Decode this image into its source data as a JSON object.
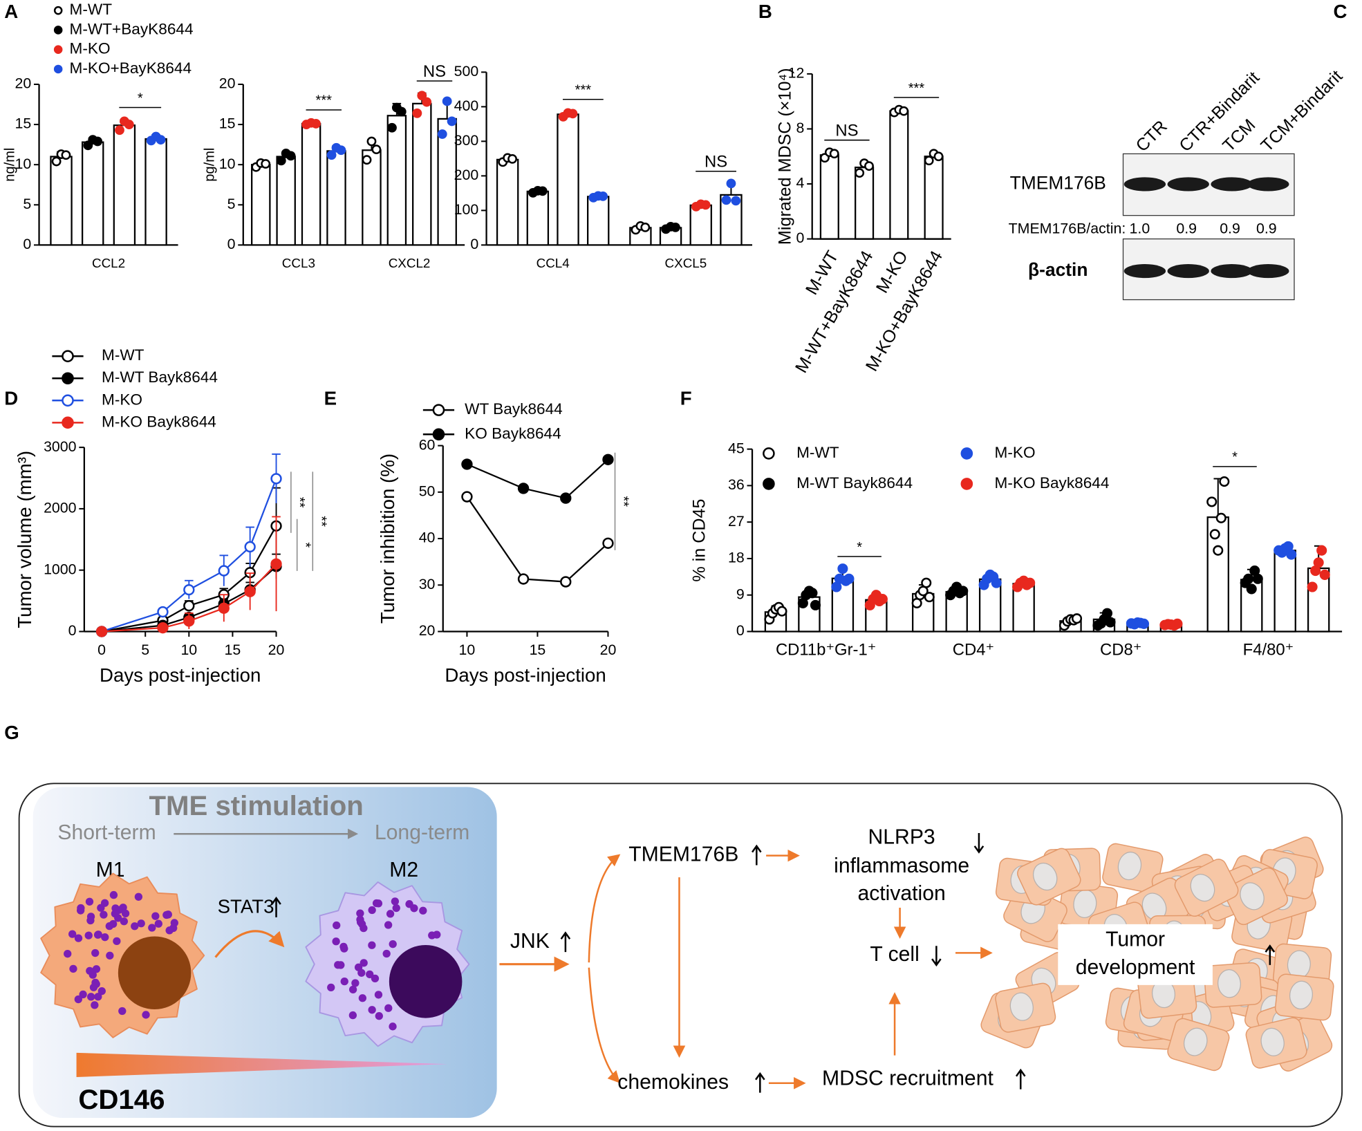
{
  "chart_data": [
    {
      "type": "bar",
      "panel_label": "A",
      "ylabel": "ng/ml",
      "ylim": [
        0,
        20
      ],
      "yticks": [
        0,
        5,
        10,
        15,
        20
      ],
      "categories": [
        "CCL2"
      ],
      "series": [
        {
          "name": "M-WT",
          "color": "#000000",
          "marker": "open",
          "values": [
            11.0
          ],
          "errors": [
            0.6
          ],
          "points": [
            [
              10.4,
              11.3,
              11.2
            ]
          ]
        },
        {
          "name": "M-WT+BayK8644",
          "color": "#000000",
          "marker": "filled",
          "values": [
            12.8
          ],
          "errors": [
            0.5
          ],
          "points": [
            [
              12.4,
              13.1,
              12.9
            ]
          ]
        },
        {
          "name": "M-KO",
          "color": "#e8281e",
          "marker": "filled",
          "values": [
            14.9
          ],
          "errors": [
            0.7
          ],
          "points": [
            [
              14.3,
              15.4,
              15.0
            ]
          ]
        },
        {
          "name": "M-KO+BayK8644",
          "color": "#1f4fe0",
          "marker": "filled",
          "values": [
            13.2
          ],
          "errors": [
            0.5
          ],
          "points": [
            [
              13.0,
              13.5,
              13.1
            ]
          ]
        }
      ],
      "significance": [
        {
          "label": "*",
          "from": 2,
          "to": 3
        }
      ]
    },
    {
      "type": "bar",
      "ylabel": "pg/ml",
      "ylim": [
        0,
        20
      ],
      "yticks": [
        0,
        5,
        10,
        15,
        20
      ],
      "categories": [
        "CCL3",
        "CXCL2"
      ],
      "series": [
        {
          "color": "#000000",
          "marker": "open",
          "values": [
            10.0,
            11.8
          ],
          "errors": [
            0.4,
            1.3
          ],
          "points": [
            [
              9.7,
              10.2,
              10.1
            ],
            [
              10.6,
              12.9,
              11.9
            ]
          ]
        },
        {
          "color": "#000000",
          "marker": "filled",
          "values": [
            11.0,
            16.1
          ],
          "errors": [
            0.6,
            1.5
          ],
          "points": [
            [
              10.5,
              11.4,
              11.1
            ],
            [
              14.6,
              17.1,
              16.6
            ]
          ]
        },
        {
          "color": "#e8281e",
          "marker": "filled",
          "values": [
            15.1,
            17.6
          ],
          "errors": [
            0.2,
            1.3
          ],
          "points": [
            [
              15.0,
              15.2,
              15.1
            ],
            [
              16.4,
              18.6,
              17.8
            ]
          ]
        },
        {
          "color": "#1f4fe0",
          "marker": "filled",
          "values": [
            11.7,
            15.7
          ],
          "errors": [
            0.6,
            2.0
          ],
          "points": [
            [
              11.2,
              12.1,
              11.8
            ],
            [
              13.8,
              17.9,
              15.4
            ]
          ]
        }
      ],
      "significance": [
        {
          "label": "***",
          "from": 2,
          "to": 3
        },
        {
          "label": "NS",
          "from": 6,
          "to": 7
        }
      ]
    },
    {
      "type": "bar",
      "ylim": [
        0,
        500
      ],
      "yticks": [
        0,
        100,
        200,
        300,
        400,
        500
      ],
      "categories": [
        "CCL4",
        "CXCL5"
      ],
      "series": [
        {
          "color": "#000000",
          "marker": "open",
          "values": [
            247,
            50
          ],
          "errors": [
            8,
            8
          ],
          "points": [
            [
              240,
              252,
              249
            ],
            [
              44,
              55,
              51
            ]
          ]
        },
        {
          "color": "#000000",
          "marker": "filled",
          "values": [
            155,
            50
          ],
          "errors": [
            5,
            5
          ],
          "points": [
            [
              151,
              157,
              156
            ],
            [
              46,
              53,
              51
            ]
          ]
        },
        {
          "color": "#e8281e",
          "marker": "filled",
          "values": [
            378,
            115
          ],
          "errors": [
            8,
            5
          ],
          "points": [
            [
              371,
              382,
              380
            ],
            [
              111,
              118,
              116
            ]
          ]
        },
        {
          "color": "#1f4fe0",
          "marker": "filled",
          "values": [
            140,
            145
          ],
          "errors": [
            5,
            30
          ],
          "points": [
            [
              137,
              142,
              141
            ],
            [
              130,
              178,
              128
            ]
          ]
        }
      ],
      "significance": [
        {
          "label": "***",
          "from": 2,
          "to": 3
        },
        {
          "label": "NS",
          "from": 6,
          "to": 7
        }
      ]
    },
    {
      "type": "bar",
      "panel_label": "B",
      "ylabel": "Migrated MDSC (×10⁴)",
      "ylim": [
        0,
        12
      ],
      "yticks": [
        0,
        4,
        8,
        12
      ],
      "categories": [
        "M-WT",
        "M-WT+BayK8644",
        "M-KO",
        "M-KO+BayK8644"
      ],
      "series": [
        {
          "color": "#000000",
          "marker": "open",
          "values": [
            6.1,
            5.2,
            9.3,
            6.0
          ],
          "errors": [
            0.2,
            0.4,
            0.1,
            0.3
          ],
          "points": [
            [
              5.9,
              6.3,
              6.2
            ],
            [
              4.8,
              5.5,
              5.3
            ],
            [
              9.2,
              9.4,
              9.3
            ],
            [
              5.7,
              6.2,
              6.0
            ]
          ]
        }
      ],
      "significance": [
        {
          "label": "NS",
          "from": 0,
          "to": 1
        },
        {
          "label": "***",
          "from": 2,
          "to": 3
        }
      ]
    },
    {
      "type": "line",
      "panel_label": "D",
      "xlabel": "Days post-injection",
      "ylabel": "Tumor volume (mm³)",
      "x": [
        0,
        7,
        10,
        14,
        17,
        20
      ],
      "xlim": [
        -2,
        20
      ],
      "xticks": [
        0,
        5,
        10,
        15,
        20
      ],
      "ylim": [
        0,
        3000
      ],
      "yticks": [
        0,
        1000,
        2000,
        3000
      ],
      "series": [
        {
          "name": "M-WT",
          "color": "#000000",
          "marker": "open",
          "values": [
            0,
            180,
            420,
            600,
            960,
            1720
          ],
          "errors": [
            0,
            40,
            80,
            100,
            150,
            620
          ]
        },
        {
          "name": "M-WT Bayk8644",
          "color": "#000000",
          "marker": "filled",
          "values": [
            0,
            100,
            230,
            450,
            680,
            1060
          ],
          "errors": [
            0,
            30,
            60,
            80,
            120,
            200
          ]
        },
        {
          "name": "M-KO",
          "color": "#1f4fe0",
          "marker": "open",
          "values": [
            0,
            320,
            680,
            990,
            1380,
            2490
          ],
          "errors": [
            0,
            50,
            150,
            250,
            320,
            400
          ]
        },
        {
          "name": "M-KO Bayk8644",
          "color": "#e8281e",
          "marker": "filled",
          "values": [
            0,
            60,
            170,
            380,
            650,
            1100
          ],
          "errors": [
            0,
            40,
            130,
            220,
            300,
            770
          ]
        }
      ],
      "significance": [
        {
          "label": "**",
          "from": 2,
          "to": 0
        },
        {
          "label": "*",
          "from": 0,
          "to": 3
        },
        {
          "label": "**",
          "from": 2,
          "to": 3
        }
      ]
    },
    {
      "type": "line",
      "panel_label": "E",
      "xlabel": "Days post-injection",
      "ylabel": "Tumor inhibition (%)",
      "x": [
        10,
        14,
        17,
        20
      ],
      "xlim": [
        8.3,
        20
      ],
      "xticks": [
        10,
        15,
        20
      ],
      "ylim": [
        20,
        60
      ],
      "yticks": [
        20,
        30,
        40,
        50,
        60
      ],
      "series": [
        {
          "name": "WT Bayk8644",
          "color": "#000000",
          "marker": "open",
          "values": [
            49,
            31.3,
            30.7,
            39
          ]
        },
        {
          "name": "KO Bayk8644",
          "color": "#000000",
          "marker": "filled",
          "values": [
            56,
            50.8,
            48.7,
            57
          ]
        }
      ],
      "significance": [
        {
          "label": "**",
          "from": 1,
          "to": 0
        }
      ]
    },
    {
      "type": "bar",
      "panel_label": "F",
      "ylabel": "% in CD45",
      "ylim": [
        0,
        45
      ],
      "yticks": [
        0,
        9,
        18,
        27,
        36,
        45
      ],
      "categories": [
        "CD11b⁺Gr-1⁺",
        "CD4⁺",
        "CD8⁺",
        "F4/80⁺"
      ],
      "series": [
        {
          "name": "M-WT",
          "color": "#000000",
          "marker": "open",
          "values": [
            4.8,
            9.3,
            2.6,
            28.2
          ],
          "errors": [
            1.5,
            2.2,
            0.8,
            9.5
          ],
          "points": [
            [
              3,
              4.5,
              5.5,
              6,
              5
            ],
            [
              7,
              9,
              10,
              12,
              8.5
            ],
            [
              1.5,
              2.5,
              3,
              2.8,
              3.2
            ],
            [
              32,
              24,
              20,
              28,
              37
            ]
          ]
        },
        {
          "name": "M-WT Bayk8644",
          "color": "#000000",
          "marker": "filled",
          "values": [
            8.5,
            9.8,
            3.0,
            12.8
          ],
          "errors": [
            2.0,
            1.2,
            1.6,
            2.5
          ],
          "points": [
            [
              7,
              9,
              10,
              9.5,
              6.5
            ],
            [
              9,
              10,
              11,
              9.5,
              10
            ],
            [
              1.5,
              2,
              3,
              4.5,
              2.3
            ],
            [
              12,
              13,
              10.5,
              15,
              13
            ]
          ]
        },
        {
          "name": "M-KO",
          "color": "#1f4fe0",
          "marker": "filled",
          "values": [
            13.1,
            12.9,
            2.0,
            20.0
          ],
          "errors": [
            2.3,
            1.5,
            0.4,
            0.8
          ],
          "points": [
            [
              11,
              13,
              15.5,
              12.5,
              13
            ],
            [
              11.5,
              13,
              14,
              13.5,
              12
            ],
            [
              2,
              1.8,
              2.2,
              2.1,
              1.9
            ],
            [
              20,
              19.5,
              20.5,
              21,
              19
            ]
          ]
        },
        {
          "name": "M-KO Bayk8644",
          "color": "#e8281e",
          "marker": "filled",
          "values": [
            7.8,
            11.8,
            1.7,
            15.6
          ],
          "errors": [
            1.5,
            1.2,
            0.3,
            5.5
          ],
          "points": [
            [
              6.5,
              8,
              9,
              7.5,
              8
            ],
            [
              11,
              12,
              12.5,
              11.5,
              12
            ],
            [
              1.6,
              1.8,
              1.7,
              1.5,
              1.9
            ],
            [
              11,
              15,
              17,
              20,
              14
            ]
          ]
        }
      ],
      "significance": [
        {
          "label": "*",
          "from": 2,
          "to": 3
        },
        {
          "label": "*",
          "from": 12,
          "to": 13
        }
      ]
    }
  ],
  "blot": {
    "panel_label": "C",
    "lanes": [
      "CTR",
      "CTR+Bindarit",
      "TCM",
      "TCM+Bindarit"
    ],
    "rows": [
      "TMEM176B",
      "β-actin"
    ],
    "ratio_label": "TMEM176B/actin:",
    "ratios": [
      "1.0",
      "0.9",
      "0.9",
      "0.9"
    ]
  },
  "diagram": {
    "panel_label": "G",
    "title": "TME stimulation",
    "short_term": "Short-term",
    "long_term": "Long-term",
    "m1": "M1",
    "m2": "M2",
    "stat3": "STAT3",
    "marker": "CD146",
    "jnk": "JNK",
    "tmem176b": "TMEM176B",
    "nlrp3": [
      "NLRP3",
      "inflammasome",
      "activation"
    ],
    "t_cell": "T cell",
    "chemokines": "chemokines",
    "mdsc": "MDSC recruitment",
    "tumor": [
      "Tumor",
      "development"
    ]
  }
}
